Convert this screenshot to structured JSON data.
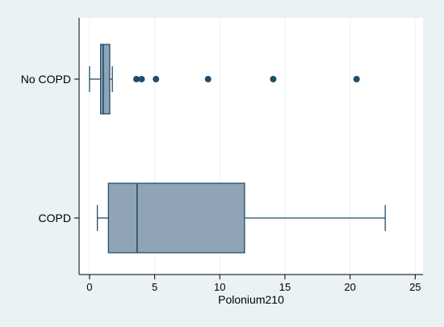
{
  "chart_data": {
    "type": "box",
    "orientation": "horizontal",
    "title": "",
    "xlabel": "Polonium210",
    "ylabel": "",
    "xlim": [
      -0.8,
      25.6
    ],
    "xticks": [
      0,
      5,
      10,
      15,
      20,
      25
    ],
    "grid": true,
    "legend": "none",
    "colors": {
      "outer_background": "#eaf2f3",
      "plot_background": "#ffffff",
      "box_fill": "#91a4b5",
      "box_stroke": "#1f4e6b",
      "outlier": "#1f4e6b",
      "grid": "#eaf2f3"
    },
    "groups": [
      {
        "name": "No COPD",
        "whisker_low": 0.0,
        "q1": 0.85,
        "median": 1.05,
        "q3": 1.55,
        "whisker_high": 1.75,
        "outliers": [
          3.6,
          4.0,
          5.1,
          9.1,
          14.1,
          20.5
        ]
      },
      {
        "name": "COPD",
        "whisker_low": 0.6,
        "q1": 1.45,
        "median": 3.65,
        "q3": 11.9,
        "whisker_high": 22.7,
        "outliers": []
      }
    ]
  }
}
